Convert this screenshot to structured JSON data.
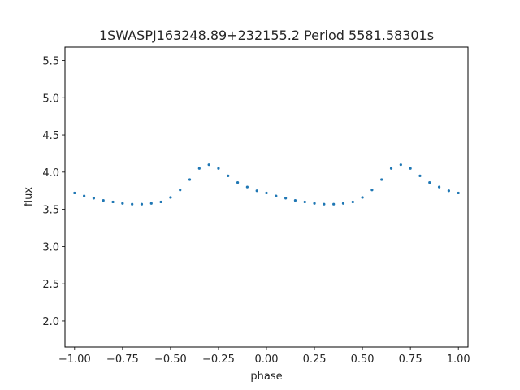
{
  "chart_data": {
    "type": "scatter",
    "title": "1SWASPJ163248.89+232155.2 Period 5581.58301s",
    "xlabel": "phase",
    "ylabel": "flux",
    "xlim": [
      -1.05,
      1.05
    ],
    "ylim": [
      1.65,
      5.68
    ],
    "x_ticks": [
      -1.0,
      -0.75,
      -0.5,
      -0.25,
      0.0,
      0.25,
      0.5,
      0.75,
      1.0
    ],
    "x_tick_labels": [
      "−1.00",
      "−0.75",
      "−0.50",
      "−0.25",
      "0.00",
      "0.25",
      "0.50",
      "0.75",
      "1.00"
    ],
    "y_ticks": [
      2.0,
      2.5,
      3.0,
      3.5,
      4.0,
      4.5,
      5.0,
      5.5
    ],
    "y_tick_labels": [
      "2.0",
      "2.5",
      "3.0",
      "3.5",
      "4.0",
      "4.5",
      "5.0",
      "5.5"
    ],
    "grid": false,
    "legend": "none",
    "marker_color": "#1f77b4",
    "series": [
      {
        "x": [
          -1.0,
          -0.95,
          -0.9,
          -0.85,
          -0.8,
          -0.75,
          -0.7,
          -0.65,
          -0.6,
          -0.55,
          -0.5,
          -0.45,
          -0.4,
          -0.35,
          -0.3,
          -0.25,
          -0.2,
          -0.15,
          -0.1,
          -0.05,
          0.0,
          0.05,
          0.1,
          0.15,
          0.2,
          0.25,
          0.3,
          0.35,
          0.4,
          0.45,
          0.5,
          0.55,
          0.6,
          0.65,
          0.7,
          0.75,
          0.8,
          0.85,
          0.9,
          0.95,
          1.0
        ],
        "y": [
          3.72,
          3.68,
          3.65,
          3.62,
          3.6,
          3.58,
          3.57,
          3.57,
          3.58,
          3.6,
          3.66,
          3.76,
          3.9,
          4.05,
          4.1,
          4.05,
          3.95,
          3.86,
          3.8,
          3.75,
          3.72,
          3.68,
          3.65,
          3.62,
          3.6,
          3.58,
          3.57,
          3.57,
          3.58,
          3.6,
          3.66,
          3.76,
          3.9,
          4.05,
          4.1,
          4.05,
          3.95,
          3.86,
          3.8,
          3.75,
          3.72
        ]
      }
    ]
  }
}
